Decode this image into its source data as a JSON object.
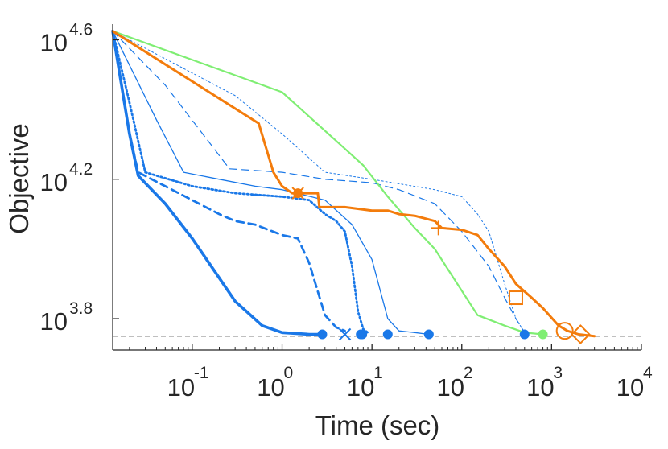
{
  "chart_data": {
    "type": "line",
    "title": "",
    "xlabel": "Time (sec)",
    "ylabel": "Objective",
    "x_scale": "log",
    "y_scale": "log",
    "xlim": [
      0.013,
      10000
    ],
    "ylim_exponent": [
      3.71,
      4.645
    ],
    "x_ticks": [
      {
        "base": "10",
        "exp": "-1",
        "value": 0.1
      },
      {
        "base": "10",
        "exp": "0",
        "value": 1
      },
      {
        "base": "10",
        "exp": "1",
        "value": 10
      },
      {
        "base": "10",
        "exp": "2",
        "value": 100
      },
      {
        "base": "10",
        "exp": "3",
        "value": 1000
      },
      {
        "base": "10",
        "exp": "4",
        "value": 10000
      }
    ],
    "y_ticks": [
      {
        "base": "10",
        "exp": "3.8",
        "value": 3.8
      },
      {
        "base": "10",
        "exp": "4.2",
        "value": 4.2
      },
      {
        "base": "10",
        "exp": "4.6",
        "value": 4.6
      }
    ],
    "reference_line": {
      "exponent": 3.75
    },
    "colors": {
      "blue": "#1a78e8",
      "orange": "#f37c0c",
      "green": "#7fee73",
      "dark": "#555555"
    },
    "series": [
      {
        "color": "#1a78e8",
        "width": 3.6,
        "dash": "solid",
        "points": [
          [
            0.013,
            4.625
          ],
          [
            0.02,
            4.33
          ],
          [
            0.025,
            4.21
          ],
          [
            0.05,
            4.13
          ],
          [
            0.1,
            4.03
          ],
          [
            0.3,
            3.85
          ],
          [
            0.6,
            3.78
          ],
          [
            1.0,
            3.76
          ],
          [
            2.0,
            3.755
          ],
          [
            2.8,
            3.755
          ]
        ],
        "marker": {
          "shape": "dot",
          "x": 2.8,
          "y": 3.755
        }
      },
      {
        "color": "#1a78e8",
        "width": 2.8,
        "dash": "dashed",
        "points": [
          [
            0.013,
            4.625
          ],
          [
            0.02,
            4.33
          ],
          [
            0.025,
            4.22
          ],
          [
            0.05,
            4.18
          ],
          [
            0.1,
            4.14
          ],
          [
            0.2,
            4.1
          ],
          [
            0.3,
            4.08
          ],
          [
            0.5,
            4.07
          ],
          [
            1.0,
            4.04
          ],
          [
            1.5,
            4.03
          ],
          [
            2.0,
            3.96
          ],
          [
            3.0,
            3.81
          ],
          [
            4.0,
            3.775
          ],
          [
            5.0,
            3.765
          ]
        ],
        "marker": {
          "shape": "x",
          "x": 5.0,
          "y": 3.755
        }
      },
      {
        "color": "#1a78e8",
        "width": 2.8,
        "dash": "dotted",
        "points": [
          [
            0.013,
            4.625
          ],
          [
            0.02,
            4.42
          ],
          [
            0.03,
            4.22
          ],
          [
            0.1,
            4.18
          ],
          [
            0.3,
            4.16
          ],
          [
            1.0,
            4.15
          ],
          [
            2.0,
            4.14
          ],
          [
            3.0,
            4.1
          ],
          [
            4.0,
            4.08
          ],
          [
            5.0,
            4.05
          ],
          [
            6.0,
            3.95
          ],
          [
            7.0,
            3.82
          ],
          [
            8.0,
            3.77
          ],
          [
            9.0,
            3.76
          ]
        ],
        "marker": {
          "shape": "dot",
          "x": 7.5,
          "y": 3.755
        }
      },
      {
        "color": "#1a78e8",
        "width": 1.3,
        "dash": "solid",
        "points": [
          [
            0.013,
            4.625
          ],
          [
            0.04,
            4.37
          ],
          [
            0.08,
            4.22
          ],
          [
            0.2,
            4.2
          ],
          [
            0.5,
            4.18
          ],
          [
            1.0,
            4.17
          ],
          [
            3.0,
            4.14
          ],
          [
            6.0,
            4.07
          ],
          [
            10.0,
            3.97
          ],
          [
            15.0,
            3.8
          ],
          [
            20.0,
            3.765
          ],
          [
            30.0,
            3.76
          ],
          [
            43.0,
            3.755
          ]
        ],
        "marker": {
          "shape": "dot",
          "x": 15.0,
          "y": 3.755
        }
      },
      {
        "color": "#1a78e8",
        "width": 1.2,
        "dash": "dashed",
        "points": [
          [
            0.013,
            4.625
          ],
          [
            0.05,
            4.47
          ],
          [
            0.26,
            4.23
          ],
          [
            1.0,
            4.22
          ],
          [
            3.0,
            4.2
          ],
          [
            10.0,
            4.19
          ],
          [
            20.0,
            4.17
          ],
          [
            50.0,
            4.13
          ],
          [
            100.0,
            4.05
          ],
          [
            200.0,
            3.95
          ],
          [
            300.0,
            3.86
          ],
          [
            400.0,
            3.8
          ],
          [
            500.0,
            3.76
          ]
        ],
        "marker": {
          "shape": "dot",
          "x": 43.0,
          "y": 3.755
        }
      },
      {
        "color": "#1a78e8",
        "width": 1.0,
        "dash": "dotted",
        "points": [
          [
            0.013,
            4.625
          ],
          [
            0.3,
            4.44
          ],
          [
            1.0,
            4.33
          ],
          [
            3.0,
            4.22
          ],
          [
            10.0,
            4.2
          ],
          [
            50.0,
            4.17
          ],
          [
            100.0,
            4.15
          ],
          [
            150.0,
            4.1
          ],
          [
            200.0,
            4.05
          ],
          [
            300.0,
            3.9
          ],
          [
            400.0,
            3.8
          ],
          [
            500.0,
            3.76
          ]
        ],
        "marker": {
          "shape": "dot",
          "x": 500.0,
          "y": 3.755
        }
      },
      {
        "color": "#7fee73",
        "width": 2.2,
        "dash": "solid",
        "points": [
          [
            0.013,
            4.625
          ],
          [
            1.0,
            4.45
          ],
          [
            4.0,
            4.31
          ],
          [
            8.0,
            4.24
          ],
          [
            15.0,
            4.15
          ],
          [
            30.0,
            4.06
          ],
          [
            50.0,
            4.0
          ],
          [
            100.0,
            3.88
          ],
          [
            150.0,
            3.81
          ],
          [
            300.0,
            3.78
          ],
          [
            500.0,
            3.76
          ],
          [
            800.0,
            3.755
          ]
        ],
        "marker": {
          "shape": "dot",
          "x": 800.0,
          "y": 3.755
        }
      },
      {
        "color": "#f37c0c",
        "width": 3.0,
        "dash": "solid",
        "points": [
          [
            0.013,
            4.625
          ],
          [
            0.55,
            4.36
          ],
          [
            0.8,
            4.22
          ],
          [
            1.0,
            4.18
          ],
          [
            1.3,
            4.16
          ],
          [
            2.0,
            4.16
          ],
          [
            2.5,
            4.16
          ],
          [
            2.6,
            4.12
          ],
          [
            5.0,
            4.12
          ],
          [
            10.0,
            4.11
          ],
          [
            15.0,
            4.11
          ],
          [
            20.0,
            4.1
          ],
          [
            30.0,
            4.095
          ],
          [
            50.0,
            4.08
          ],
          [
            60.0,
            4.06
          ],
          [
            100.0,
            4.055
          ],
          [
            150.0,
            4.04
          ],
          [
            200.0,
            4.0
          ],
          [
            300.0,
            3.95
          ],
          [
            400.0,
            3.9
          ],
          [
            600.0,
            3.86
          ],
          [
            800.0,
            3.83
          ],
          [
            1200.0,
            3.78
          ],
          [
            1500.0,
            3.765
          ],
          [
            2000.0,
            3.755
          ],
          [
            3000.0,
            3.75
          ]
        ],
        "markers": [
          {
            "shape": "dot",
            "x": 1.5,
            "y": 4.16
          },
          {
            "shape": "x",
            "x": 1.5,
            "y": 4.16
          },
          {
            "shape": "plus",
            "x": 55.0,
            "y": 4.06
          },
          {
            "shape": "square",
            "x": 400.0,
            "y": 3.86
          },
          {
            "shape": "circle",
            "x": 1400.0,
            "y": 3.765
          },
          {
            "shape": "diamond",
            "x": 2100.0,
            "y": 3.755
          }
        ]
      }
    ],
    "extra_markers": [
      {
        "shape": "dot",
        "color": "#1a78e8",
        "x": 7.8,
        "y": 3.755
      }
    ]
  }
}
